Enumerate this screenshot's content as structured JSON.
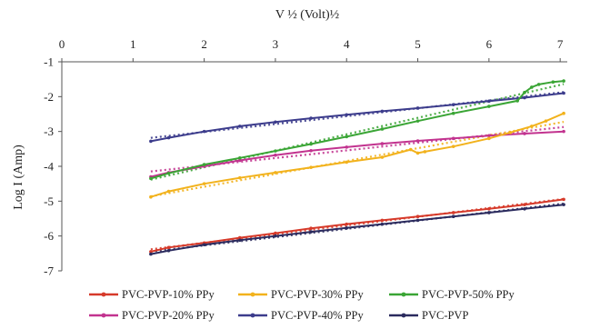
{
  "chart_data": {
    "type": "line",
    "title": "",
    "xlabel": "V ½ (Volt)½",
    "ylabel": "Log I (Amp)",
    "xlim": [
      0,
      7.1
    ],
    "ylim": [
      -7,
      -1
    ],
    "x_ticks": [
      0,
      1,
      2,
      3,
      4,
      5,
      6,
      7
    ],
    "y_ticks": [
      -1,
      -2,
      -3,
      -4,
      -5,
      -6,
      -7
    ],
    "x_axis_position": "top",
    "grid": false,
    "legend_position": "bottom",
    "trendlines": "dotted linear fit per series",
    "series": [
      {
        "name": "PVC-PVP-10% PPy",
        "color": "#d63a2a",
        "x": [
          1.25,
          1.5,
          2.0,
          2.5,
          3.0,
          3.5,
          4.0,
          4.5,
          5.0,
          5.5,
          6.0,
          6.5,
          7.05
        ],
        "y": [
          -6.45,
          -6.33,
          -6.2,
          -6.05,
          -5.92,
          -5.78,
          -5.66,
          -5.55,
          -5.44,
          -5.33,
          -5.22,
          -5.1,
          -4.95
        ]
      },
      {
        "name": "PVC-PVP-20% PPy",
        "color": "#c2338f",
        "x": [
          1.25,
          1.5,
          2.0,
          2.5,
          3.0,
          3.5,
          4.0,
          4.5,
          5.0,
          5.5,
          6.0,
          6.5,
          7.05
        ],
        "y": [
          -4.3,
          -4.18,
          -4.0,
          -3.83,
          -3.68,
          -3.55,
          -3.45,
          -3.35,
          -3.27,
          -3.2,
          -3.12,
          -3.06,
          -3.0
        ]
      },
      {
        "name": "PVC-PVP-30% PPy",
        "color": "#f2b21c",
        "x": [
          1.25,
          1.5,
          2.0,
          2.5,
          3.0,
          3.5,
          4.0,
          4.5,
          4.9,
          5.0,
          5.1,
          5.5,
          6.0,
          6.3,
          6.6,
          6.8,
          7.05
        ],
        "y": [
          -4.88,
          -4.72,
          -4.5,
          -4.33,
          -4.18,
          -4.03,
          -3.88,
          -3.74,
          -3.52,
          -3.62,
          -3.58,
          -3.43,
          -3.2,
          -3.03,
          -2.85,
          -2.7,
          -2.48
        ]
      },
      {
        "name": "PVC-PVP-40% PPy",
        "color": "#3c3c8c",
        "x": [
          1.25,
          1.5,
          2.0,
          2.5,
          3.0,
          3.5,
          4.0,
          4.5,
          5.0,
          5.5,
          6.0,
          6.5,
          7.05
        ],
        "y": [
          -3.28,
          -3.18,
          -3.0,
          -2.85,
          -2.73,
          -2.62,
          -2.52,
          -2.42,
          -2.33,
          -2.23,
          -2.13,
          -2.03,
          -1.9
        ]
      },
      {
        "name": "PVC-PVP-50% PPy",
        "color": "#3aa535",
        "x": [
          1.25,
          1.5,
          2.0,
          2.5,
          3.0,
          3.5,
          4.0,
          4.5,
          5.0,
          5.5,
          6.0,
          6.4,
          6.5,
          6.6,
          6.7,
          6.9,
          7.05
        ],
        "y": [
          -4.35,
          -4.2,
          -3.95,
          -3.76,
          -3.56,
          -3.36,
          -3.15,
          -2.93,
          -2.7,
          -2.48,
          -2.28,
          -2.12,
          -1.88,
          -1.73,
          -1.65,
          -1.58,
          -1.55
        ]
      },
      {
        "name": "PVC-PVP",
        "color": "#2b2b5e",
        "x": [
          1.25,
          1.5,
          2.0,
          2.5,
          3.0,
          3.5,
          4.0,
          4.5,
          5.0,
          5.5,
          6.0,
          6.5,
          7.05
        ],
        "y": [
          -6.52,
          -6.42,
          -6.25,
          -6.12,
          -6.0,
          -5.88,
          -5.77,
          -5.66,
          -5.55,
          -5.44,
          -5.33,
          -5.22,
          -5.1
        ]
      }
    ],
    "legend_rows": [
      [
        "PVC-PVP-10% PPy",
        "PVC-PVP-30% PPy",
        "PVC-PVP-50% PPy"
      ],
      [
        "PVC-PVP-20% PPy",
        "PVC-PVP-40% PPy",
        "PVC-PVP"
      ]
    ]
  }
}
